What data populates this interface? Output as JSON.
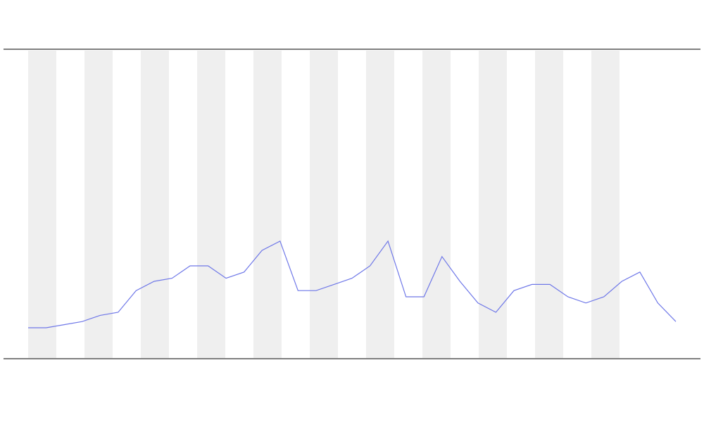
{
  "chart_data": {
    "type": "line",
    "categories": [
      null,
      null,
      null,
      null,
      null,
      null,
      null,
      null,
      null,
      null,
      null,
      null,
      null,
      null,
      null,
      null,
      null,
      null,
      null,
      null,
      null,
      null,
      null,
      null,
      null,
      null,
      null,
      null,
      null,
      null,
      null,
      null,
      null,
      null,
      null,
      null,
      null
    ],
    "series": [
      {
        "color": "#6f78e8",
        "values": [
          10,
          10,
          11,
          12,
          14,
          15,
          22,
          25,
          26,
          30,
          30,
          26,
          28,
          35,
          38,
          22,
          22,
          24,
          26,
          30,
          38,
          20,
          20,
          33,
          25,
          18,
          15,
          22,
          24,
          24,
          20,
          18,
          20,
          25,
          28,
          18,
          12
        ]
      }
    ],
    "ylim": [
      0,
      100
    ]
  }
}
